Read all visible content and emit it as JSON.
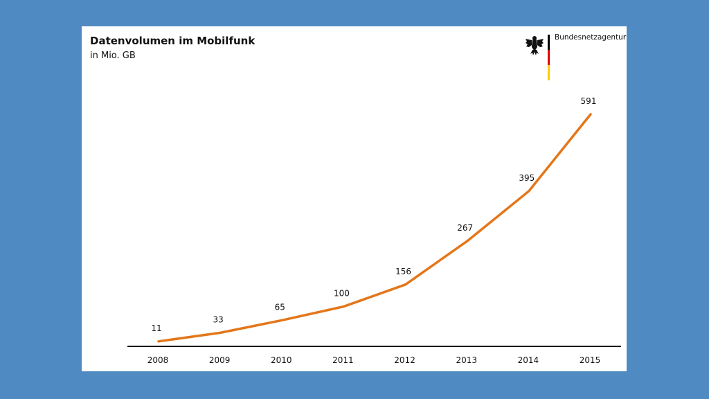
{
  "header": {
    "title": "Datenvolumen im Mobilfunk",
    "subtitle": "in Mio. GB"
  },
  "logo": {
    "org_name": "Bundesnetzagentur",
    "flag_colors": [
      "#000000",
      "#dd0000",
      "#ffcc00"
    ],
    "icon": "eagle-icon"
  },
  "chart_data": {
    "type": "line",
    "title": "Datenvolumen im Mobilfunk",
    "subtitle": "in Mio. GB",
    "xlabel": "",
    "ylabel": "",
    "categories": [
      "2008",
      "2009",
      "2010",
      "2011",
      "2012",
      "2013",
      "2014",
      "2015"
    ],
    "series": [
      {
        "values": [
          11,
          33,
          65,
          100,
          156,
          267,
          395,
          591
        ]
      }
    ],
    "data_labels": [
      "11",
      "33",
      "65",
      "100",
      "156",
      "267",
      "395",
      "591"
    ],
    "ylim": [
      0,
      600
    ],
    "grid": false,
    "legend": "none",
    "line_color": "#e4761a",
    "axis_color": "#111111"
  }
}
